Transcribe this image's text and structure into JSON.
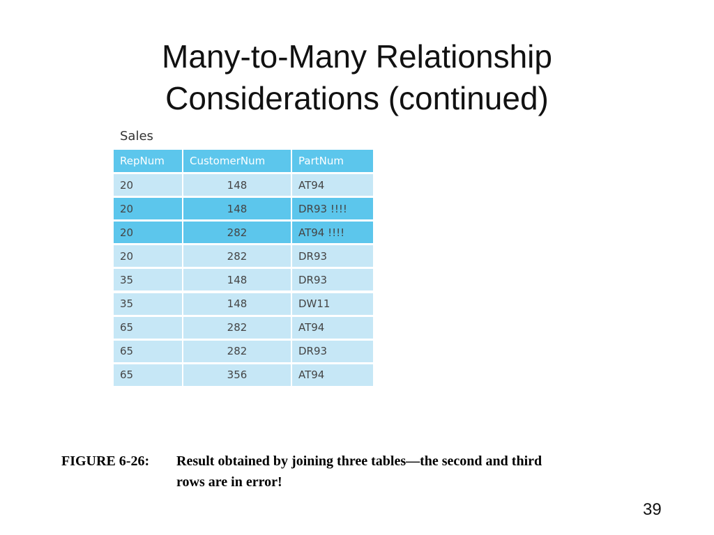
{
  "title": [
    "Many-to-Many Relationship",
    "Considerations (continued)"
  ],
  "table": {
    "name": "Sales",
    "headers": [
      "RepNum",
      "CustomerNum",
      "PartNum"
    ],
    "rows": [
      [
        "20",
        "148",
        "AT94"
      ],
      [
        "20",
        "148",
        "DR93 !!!!"
      ],
      [
        "20",
        "282",
        "AT94 !!!!"
      ],
      [
        "20",
        "282",
        "DR93"
      ],
      [
        "35",
        "148",
        "DR93"
      ],
      [
        "35",
        "148",
        "DW11"
      ],
      [
        "65",
        "282",
        "AT94"
      ],
      [
        "65",
        "282",
        "DR93"
      ],
      [
        "65",
        "356",
        "AT94"
      ]
    ],
    "highlighted_rows": [
      1,
      2
    ],
    "header_color": "#5cc6ec",
    "row_color": "#c6e7f6",
    "highlight_color": "#5cc6ec"
  },
  "caption": {
    "label": "FIGURE 6-26:",
    "lines": [
      "Result obtained by joining three tables—the second and third",
      "rows are in error!"
    ]
  },
  "page_number": "39"
}
